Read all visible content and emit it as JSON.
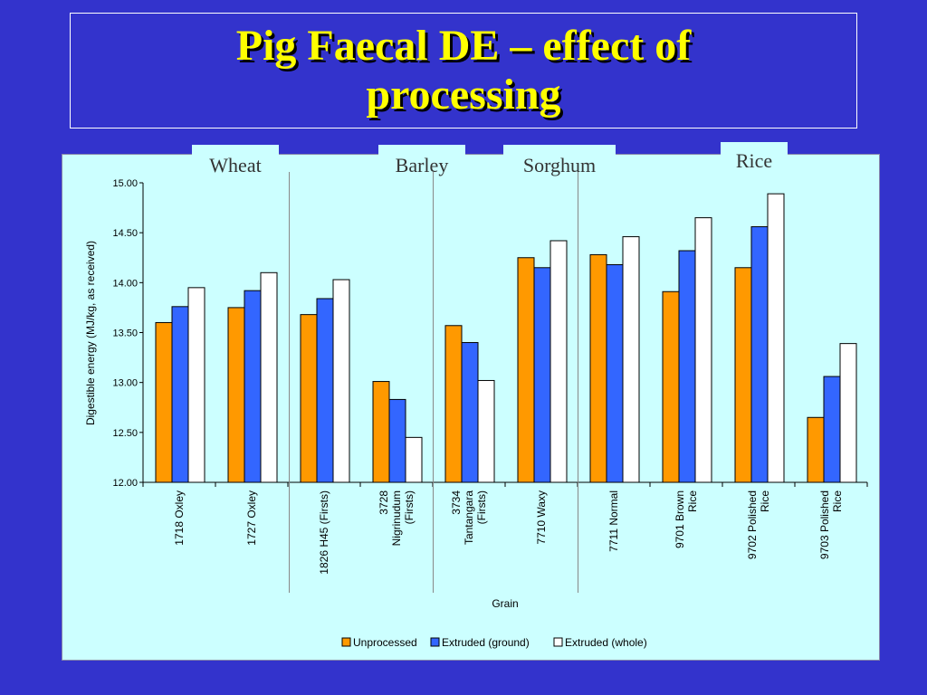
{
  "slide": {
    "title_line1": "Pig Faecal DE – effect of",
    "title_line2": "processing"
  },
  "groups": [
    "Wheat",
    "Barley",
    "Sorghum",
    "Rice"
  ],
  "colors": {
    "background": "#3333cc",
    "title": "#ffff00",
    "panel": "#ccffff",
    "unprocessed": "#ff9900",
    "extruded_ground": "#3366ff",
    "extruded_whole": "#ffffff"
  },
  "chart_data": {
    "type": "bar",
    "xlabel": "Grain",
    "ylabel": "Digestible energy (MJ/kg, as received)",
    "ylim": [
      12.0,
      15.0
    ],
    "yticks": [
      "12.00",
      "12.50",
      "13.00",
      "13.50",
      "14.00",
      "14.50",
      "15.00"
    ],
    "grid": false,
    "legend_position": "bottom",
    "categories": [
      [
        "1718 Oxley"
      ],
      [
        "1727 Oxley"
      ],
      [
        "1826 H45 (Firsts)"
      ],
      [
        "3728",
        "Nigrinudum",
        "(Firsts)"
      ],
      [
        "3734",
        "Tantangara",
        "(Firsts)"
      ],
      [
        "7710 Waxy"
      ],
      [
        "7711 Normal"
      ],
      [
        "9701 Brown",
        "Rice"
      ],
      [
        "9702 Polished",
        "Rice"
      ],
      [
        "9703 Polished",
        "Rice"
      ]
    ],
    "series": [
      {
        "name": "Unprocessed",
        "color": "#ff9900",
        "values": [
          13.6,
          13.75,
          13.68,
          13.01,
          13.57,
          14.25,
          14.28,
          13.91,
          14.15,
          12.65
        ]
      },
      {
        "name": "Extruded (ground)",
        "color": "#3366ff",
        "values": [
          13.76,
          13.92,
          13.84,
          12.83,
          13.4,
          14.15,
          14.18,
          14.32,
          14.56,
          13.06
        ]
      },
      {
        "name": "Extruded (whole)",
        "color": "#ffffff",
        "values": [
          13.95,
          14.1,
          14.03,
          12.45,
          13.02,
          14.42,
          14.46,
          14.65,
          14.89,
          13.39
        ]
      }
    ]
  }
}
